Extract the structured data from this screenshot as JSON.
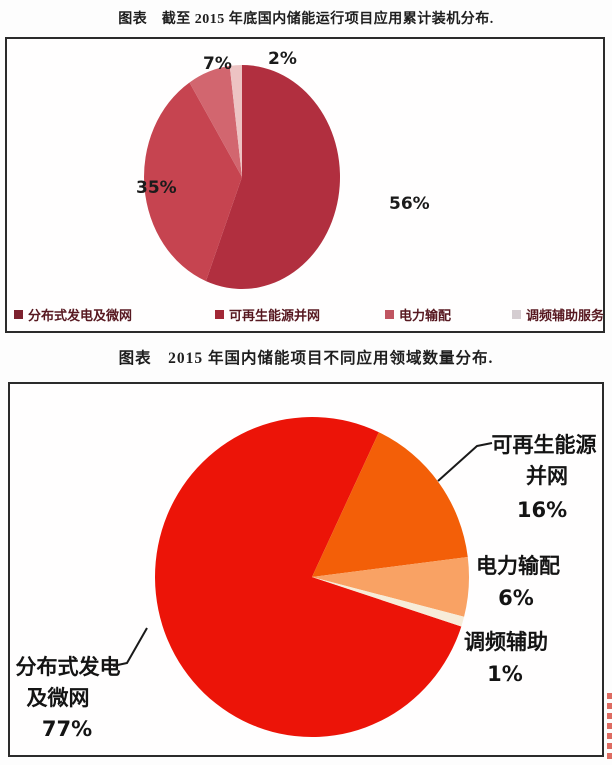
{
  "chart_data": [
    {
      "type": "pie",
      "title": "图表　截至 2015 年底国内储能运行项目应用累计装机分布.",
      "start_angle": 0,
      "legend_position": "bottom-inside",
      "slices": [
        {
          "label": "分布式发电及微网",
          "value": 56,
          "pct_label": "56%",
          "color": "#b12f3f"
        },
        {
          "label": "可再生能源并网",
          "value": 35,
          "pct_label": "35%",
          "color": "#c64450"
        },
        {
          "label": "电力输配",
          "value": 7,
          "pct_label": "7%",
          "color": "#d2666f"
        },
        {
          "label": "调频辅助服务",
          "value": 2,
          "pct_label": "2%",
          "color": "#edc3c3"
        }
      ],
      "legend_marker_colors": [
        "#7d212e",
        "#a22836",
        "#c05561",
        "#d5cdd1"
      ],
      "legend_text_color": "#571820"
    },
    {
      "type": "pie",
      "title": "图表　2015 年国内储能项目不同应用领域数量分布.",
      "start_angle": 108,
      "legend_position": "none",
      "slices": [
        {
          "label": "分布式发电及微网",
          "value": 77,
          "pct_label": "77%",
          "color": "#ec1408",
          "text_lines": [
            "分布式发电",
            "及微网",
            "77%"
          ]
        },
        {
          "label": "可再生能源并网",
          "value": 16,
          "pct_label": "16%",
          "color": "#f35f08",
          "text_lines": [
            "可再生能源",
            "并网",
            "16%"
          ]
        },
        {
          "label": "电力输配",
          "value": 6,
          "pct_label": "6%",
          "color": "#f9a264",
          "text_lines": [
            "电力输配",
            "6%"
          ]
        },
        {
          "label": "调频辅助",
          "value": 1,
          "pct_label": "1%",
          "color": "#f7ecd8",
          "text_lines": [
            "调频辅助",
            "1%"
          ]
        }
      ]
    }
  ]
}
